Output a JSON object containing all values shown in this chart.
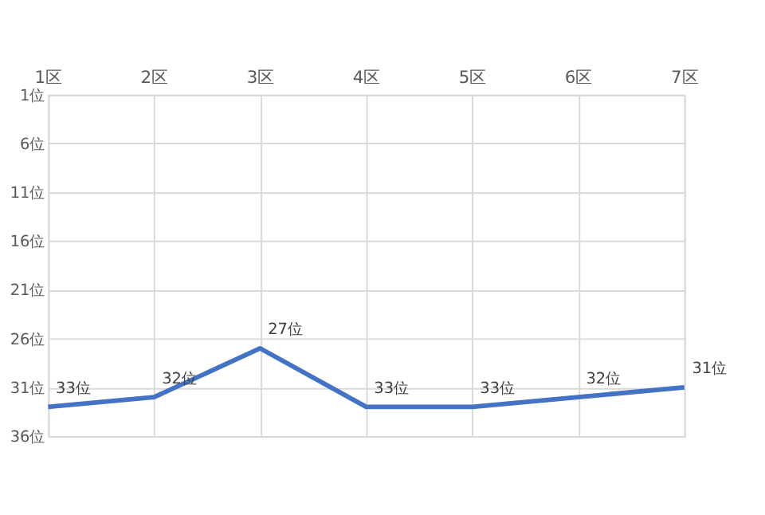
{
  "chart_data": {
    "type": "line",
    "categories": [
      "1区",
      "2区",
      "3区",
      "4区",
      "5区",
      "6区",
      "7区"
    ],
    "series": [
      {
        "color": "#4472c4",
        "values": [
          33,
          32,
          27,
          33,
          33,
          32,
          31
        ],
        "value_labels": [
          "33位",
          "32位",
          "27位",
          "33位",
          "33位",
          "32位",
          "31位"
        ]
      }
    ],
    "ylim": [
      36,
      1
    ],
    "yticks": [
      {
        "value": 1,
        "label": "1位"
      },
      {
        "value": 6,
        "label": "6位"
      },
      {
        "value": 11,
        "label": "11位"
      },
      {
        "value": 16,
        "label": "16位"
      },
      {
        "value": 21,
        "label": "21位"
      },
      {
        "value": 26,
        "label": "26位"
      },
      {
        "value": 31,
        "label": "31位"
      },
      {
        "value": 36,
        "label": "36位"
      }
    ],
    "grid": true,
    "legend": false,
    "marker": "none",
    "line_style": "solid"
  }
}
